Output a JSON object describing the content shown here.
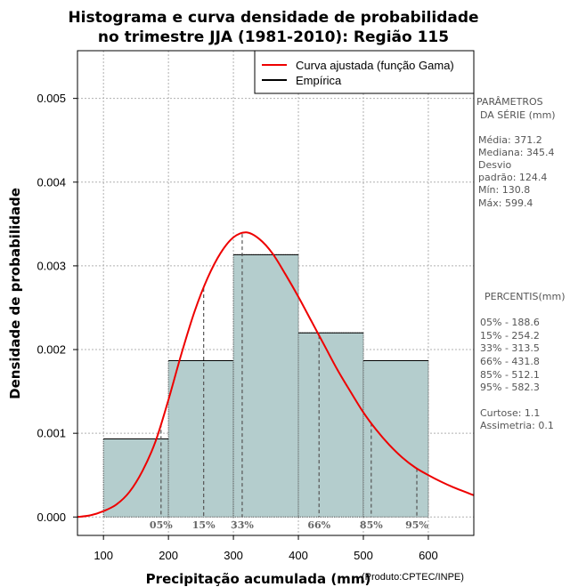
{
  "chart_data": {
    "type": "histogram",
    "title_lines": [
      "Histograma e curva densidade de probabilidade",
      "no trimestre JJA (1981-2010): Região 115"
    ],
    "xlabel": "Precipitação acumulada (mm)",
    "ylabel": "Densidade de probabilidade",
    "credit": "(Produto:CPTEC/INPE)",
    "xlim": [
      60,
      670
    ],
    "ylim": [
      -0.00022,
      0.00557
    ],
    "x_ticks": [
      "100",
      "200",
      "300",
      "400",
      "500",
      "600"
    ],
    "y_ticks": [
      "0.000",
      "0.001",
      "0.002",
      "0.003",
      "0.004",
      "0.005"
    ],
    "bins": [
      {
        "from": 100,
        "to": 200,
        "density": 0.000933
      },
      {
        "from": 200,
        "to": 300,
        "density": 0.001867
      },
      {
        "from": 300,
        "to": 400,
        "density": 0.003133
      },
      {
        "from": 400,
        "to": 500,
        "density": 0.0022
      },
      {
        "from": 500,
        "to": 600,
        "density": 0.001867
      }
    ],
    "gamma_curve": {
      "name": "Curva ajustada (função Gama)",
      "x": [
        60,
        80,
        100,
        120,
        140,
        160,
        180,
        200,
        220,
        240,
        260,
        280,
        300,
        320,
        340,
        360,
        380,
        400,
        420,
        440,
        460,
        480,
        500,
        520,
        540,
        560,
        580,
        600,
        620,
        640,
        670
      ],
      "y": [
        0.0,
        2e-05,
        7e-05,
        0.00015,
        0.0003,
        0.00055,
        0.0009,
        0.0014,
        0.00195,
        0.00245,
        0.00285,
        0.00315,
        0.00334,
        0.0034,
        0.00332,
        0.00315,
        0.0029,
        0.00263,
        0.00234,
        0.00205,
        0.00176,
        0.0015,
        0.00125,
        0.00104,
        0.00086,
        0.00071,
        0.00059,
        0.0005,
        0.00042,
        0.00035,
        0.00026
      ]
    },
    "empirical_legend": "Empírica",
    "percentile_markers": [
      {
        "label": "05%",
        "x": 188.6
      },
      {
        "label": "15%",
        "x": 254.2
      },
      {
        "label": "33%",
        "x": 313.5
      },
      {
        "label": "66%",
        "x": 431.8
      },
      {
        "label": "85%",
        "x": 512.1
      },
      {
        "label": "95%",
        "x": 582.3
      }
    ],
    "colors": {
      "bar": "#b4cdcd",
      "curve": "#ee0000",
      "empirical": "#000000",
      "grid": "#b0b0b0",
      "percentile_line": "#555555"
    }
  },
  "side_panel": {
    "params_title": [
      "PARÂMETROS",
      "DA SÉRIE (mm)"
    ],
    "params": [
      "Média:  371.2",
      "Mediana:  345.4",
      "Desvio",
      "padrão:  124.4",
      "Mín:  130.8",
      "Máx:  599.4"
    ],
    "percentis_title": "PERCENTIS(mm)",
    "percentis": [
      "05% -  188.6",
      "15% -  254.2",
      "33% -  313.5",
      "66% -  431.8",
      "85% -  512.1",
      "95% -  582.3"
    ],
    "stats": [
      "Curtose:  1.1",
      "Assimetria:  0.1"
    ]
  }
}
